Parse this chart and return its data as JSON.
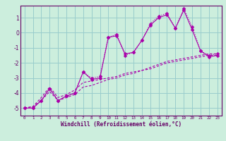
{
  "xlabel": "Windchill (Refroidissement éolien,°C)",
  "bg_color": "#cceedd",
  "line_color": "#aa00aa",
  "grid_color": "#99cccc",
  "axis_color": "#660066",
  "spine_color": "#660066",
  "xlim": [
    -0.5,
    23.5
  ],
  "ylim": [
    -5.5,
    1.8
  ],
  "yticks": [
    1,
    0,
    -1,
    -2,
    -3,
    -4,
    -5
  ],
  "xticks": [
    0,
    1,
    2,
    3,
    4,
    5,
    6,
    7,
    8,
    9,
    10,
    11,
    12,
    13,
    14,
    15,
    16,
    17,
    18,
    19,
    20,
    21,
    22,
    23
  ],
  "x": [
    0,
    1,
    2,
    3,
    4,
    5,
    6,
    7,
    8,
    9,
    10,
    11,
    12,
    13,
    14,
    15,
    16,
    17,
    18,
    19,
    20,
    21,
    22,
    23
  ],
  "series1": [
    -5.0,
    -5.0,
    -4.5,
    -3.7,
    -4.5,
    -4.2,
    -4.0,
    -2.6,
    -3.1,
    -3.0,
    -0.3,
    -0.2,
    -1.4,
    -1.3,
    -0.5,
    0.5,
    1.0,
    1.2,
    0.3,
    1.5,
    0.2,
    -1.2,
    -1.6,
    -1.5
  ],
  "series2": [
    -5.0,
    -5.0,
    -4.5,
    -3.7,
    -4.5,
    -4.2,
    -4.0,
    -2.6,
    -3.0,
    -2.9,
    -0.3,
    -0.1,
    -1.5,
    -1.3,
    -0.5,
    0.6,
    1.1,
    1.3,
    0.3,
    1.6,
    0.4,
    -1.2,
    -1.5,
    -1.4
  ],
  "series3": [
    -5.0,
    -4.9,
    -4.3,
    -3.6,
    -4.3,
    -4.1,
    -3.8,
    -3.3,
    -3.2,
    -3.1,
    -3.0,
    -2.9,
    -2.7,
    -2.6,
    -2.5,
    -2.4,
    -2.2,
    -2.0,
    -1.9,
    -1.8,
    -1.7,
    -1.6,
    -1.5,
    -1.5
  ],
  "series4": [
    -5.0,
    -4.9,
    -4.5,
    -3.9,
    -4.5,
    -4.3,
    -4.1,
    -3.6,
    -3.5,
    -3.3,
    -3.1,
    -3.0,
    -2.8,
    -2.7,
    -2.5,
    -2.3,
    -2.1,
    -1.9,
    -1.8,
    -1.7,
    -1.6,
    -1.5,
    -1.4,
    -1.4
  ]
}
